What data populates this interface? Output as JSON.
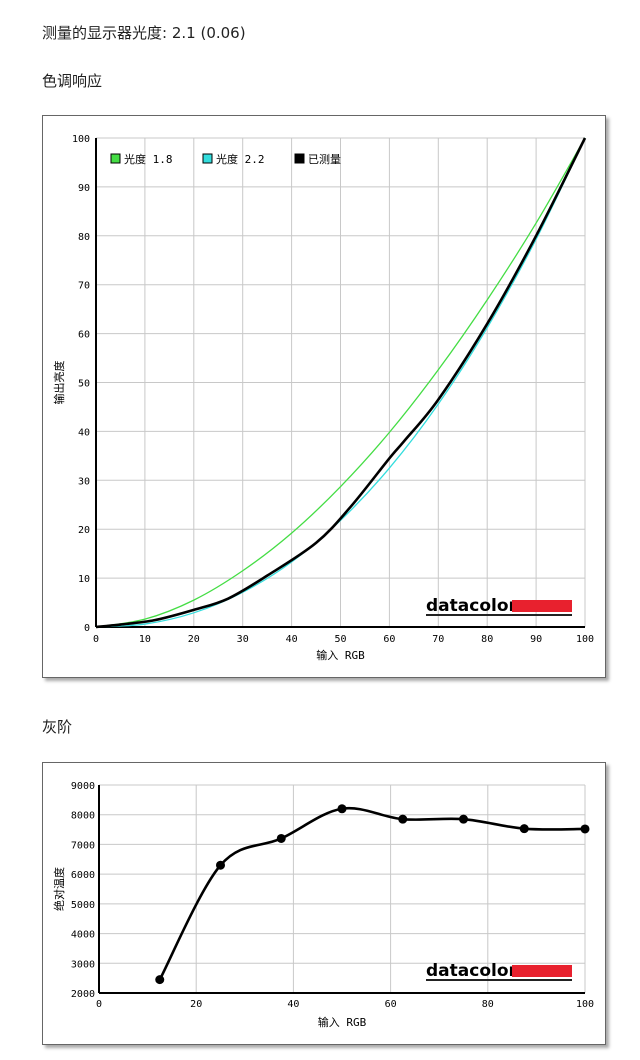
{
  "header": {
    "gamma_label": "测量的显示器光度:",
    "gamma_value": "2.1 (0.06)",
    "tone_title": "色调响应",
    "gray_title": "灰阶"
  },
  "brand": {
    "name": "datacolor",
    "accent": "#e8212e"
  },
  "chart_data": [
    {
      "type": "line",
      "xlabel": "输入 RGB",
      "ylabel": "输出亮度",
      "xlim": [
        0,
        100
      ],
      "ylim": [
        0,
        100
      ],
      "xticks": [
        0,
        10,
        20,
        30,
        40,
        50,
        60,
        70,
        80,
        90,
        100
      ],
      "yticks": [
        0,
        10,
        20,
        30,
        40,
        50,
        60,
        70,
        80,
        90,
        100
      ],
      "grid": true,
      "legend_position": "top-left",
      "series": [
        {
          "name": "光度 1.8",
          "color": "#44dd44",
          "x": [
            0,
            10,
            20,
            30,
            40,
            50,
            60,
            70,
            80,
            90,
            100
          ],
          "y": [
            0,
            1.6,
            5.5,
            11.5,
            19.2,
            28.7,
            39.8,
            52.6,
            66.9,
            82.6,
            100
          ]
        },
        {
          "name": "光度 2.2",
          "color": "#33dddd",
          "x": [
            0,
            10,
            20,
            30,
            40,
            50,
            60,
            70,
            80,
            90,
            100
          ],
          "y": [
            0,
            0.6,
            2.9,
            7.1,
            13.3,
            21.8,
            32.5,
            45.6,
            61.2,
            79.3,
            100
          ]
        },
        {
          "name": "已测量",
          "color": "#000000",
          "x": [
            0,
            5,
            12,
            20,
            27,
            35,
            45,
            52,
            60,
            63,
            70,
            80,
            90,
            100
          ],
          "y": [
            0,
            0.5,
            1.4,
            3.5,
            5.8,
            10.5,
            17.2,
            24.5,
            34.5,
            38,
            46.5,
            62,
            80,
            100
          ]
        }
      ]
    },
    {
      "type": "line",
      "xlabel": "输入 RGB",
      "ylabel": "绝对温度",
      "xlim": [
        0,
        100
      ],
      "ylim": [
        2000,
        9000
      ],
      "xticks": [
        0,
        20,
        40,
        60,
        80,
        100
      ],
      "yticks": [
        2000,
        3000,
        4000,
        5000,
        6000,
        7000,
        8000,
        9000
      ],
      "grid": true,
      "series": [
        {
          "color": "#000000",
          "x": [
            12.5,
            25,
            37.5,
            50,
            62.5,
            75,
            87.5,
            100
          ],
          "y": [
            2450,
            6300,
            7200,
            8200,
            7850,
            7850,
            7530,
            7520
          ]
        }
      ]
    }
  ]
}
